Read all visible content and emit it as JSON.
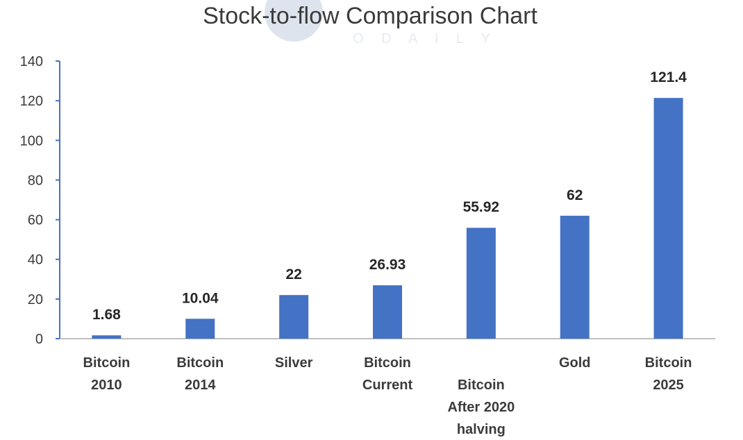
{
  "watermark": {
    "text": "O D A I L Y"
  },
  "chart_data": {
    "type": "bar",
    "title": "Stock-to-flow Comparison Chart",
    "xlabel": "",
    "ylabel": "",
    "ylim": [
      0,
      140
    ],
    "yticks": [
      0,
      20,
      40,
      60,
      80,
      100,
      120,
      140
    ],
    "grid": false,
    "legend": "none",
    "bar_color": "#4472c4",
    "categories": [
      [
        "Bitcoin",
        "2010"
      ],
      [
        "Bitcoin",
        "2014"
      ],
      [
        "Silver"
      ],
      [
        "Bitcoin",
        "Current"
      ],
      [
        "Bitcoin",
        "After 2020",
        "halving"
      ],
      [
        "Gold"
      ],
      [
        "Bitcoin",
        "2025"
      ]
    ],
    "values": [
      1.68,
      10.04,
      22,
      26.93,
      55.92,
      62,
      121.4
    ],
    "data_labels": [
      "1.68",
      "10.04",
      "22",
      "26.93",
      "55.92",
      "62",
      "121.4"
    ]
  }
}
